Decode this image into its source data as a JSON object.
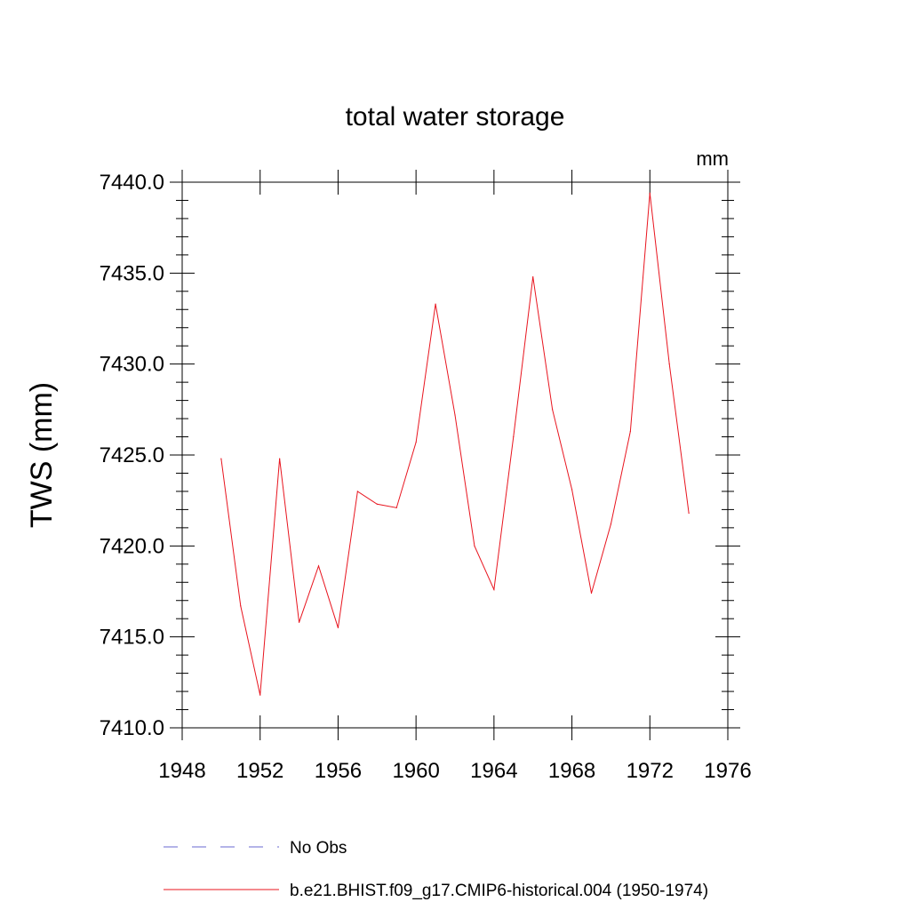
{
  "chart_data": {
    "type": "line",
    "title": "total water storage",
    "units_label": "mm",
    "ylabel": "TWS  (mm)",
    "xlabel": "",
    "xlim": [
      1948,
      1976
    ],
    "ylim": [
      7410.0,
      7440.0
    ],
    "x_ticks": [
      1948,
      1952,
      1956,
      1960,
      1964,
      1968,
      1972,
      1976
    ],
    "y_ticks": [
      "7410.0",
      "7415.0",
      "7420.0",
      "7425.0",
      "7430.0",
      "7435.0",
      "7440.0"
    ],
    "grid": false,
    "legend_placement": "bottom",
    "series": [
      {
        "name": "b.e21.BHIST.f09_g17.CMIP6-historical.004 (1950-1974)",
        "color": "#e8141e",
        "style": "solid",
        "x": [
          1950,
          1951,
          1952,
          1953,
          1954,
          1955,
          1956,
          1957,
          1958,
          1959,
          1960,
          1961,
          1962,
          1963,
          1964,
          1965,
          1966,
          1967,
          1968,
          1969,
          1970,
          1971,
          1972,
          1973,
          1974
        ],
        "y": [
          7424.8,
          7416.7,
          7411.8,
          7424.8,
          7415.8,
          7418.9,
          7415.5,
          7423.0,
          7422.3,
          7422.1,
          7425.7,
          7433.3,
          7427.2,
          7420.0,
          7417.6,
          7426.0,
          7434.8,
          7427.5,
          7423.1,
          7417.4,
          7421.2,
          7426.3,
          7439.4,
          7430.0,
          7421.8
        ]
      }
    ],
    "legend_entries": [
      {
        "label": "No Obs",
        "color": "#6a6ad0",
        "style": "dashed"
      },
      {
        "label": "b.e21.BHIST.f09_g17.CMIP6-historical.004 (1950-1974)",
        "color": "#e8141e",
        "style": "solid"
      }
    ]
  }
}
